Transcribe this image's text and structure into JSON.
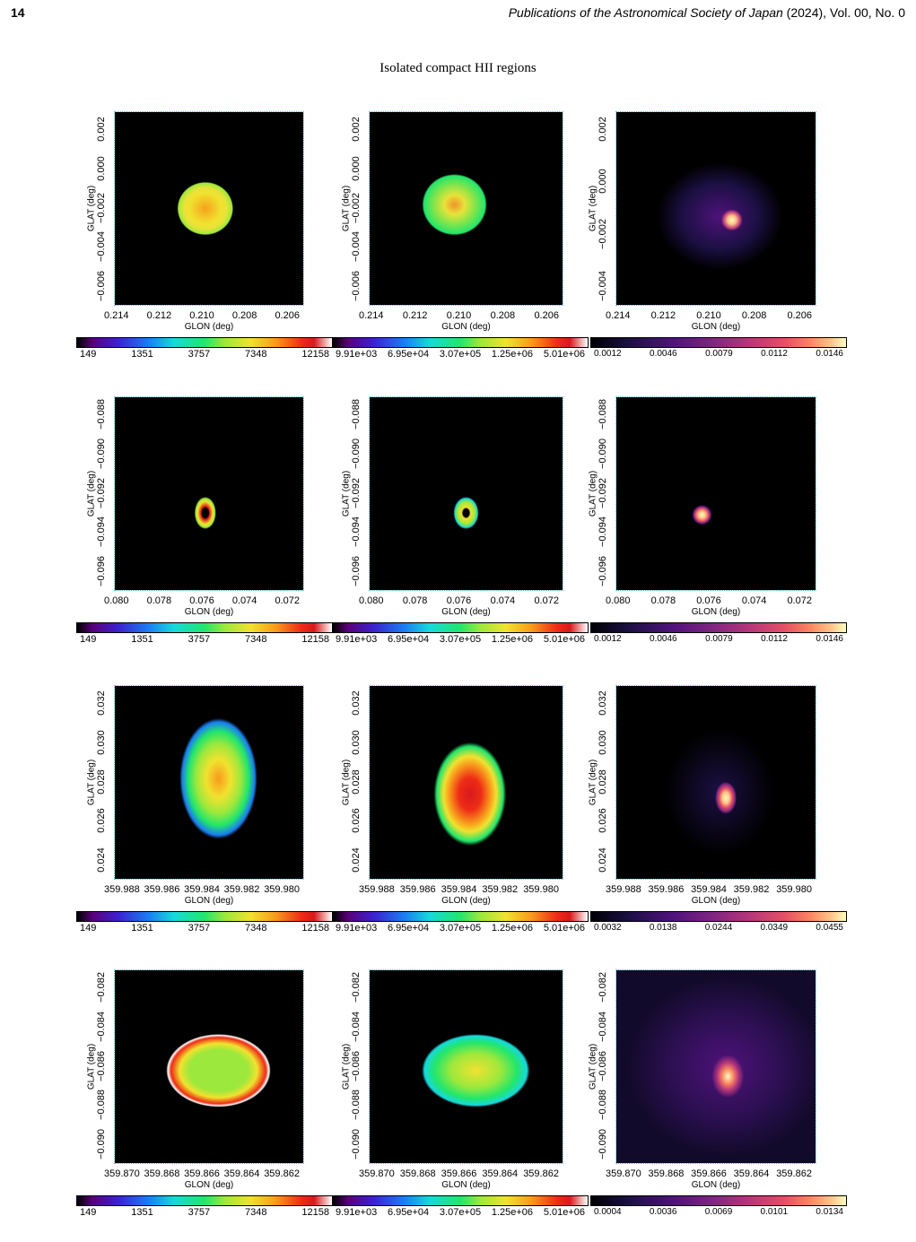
{
  "header": {
    "page_number": "14",
    "journal": "Publications of the Astronomical Society of Japan",
    "journal_meta": " (2024), Vol. 00, No. 0"
  },
  "figure_title": "Isolated compact HII regions",
  "colorbars": {
    "col1": [
      "149",
      "1351",
      "3757",
      "7348",
      "12158"
    ],
    "col2": [
      "9.91e+03",
      "6.95e+04",
      "3.07e+05",
      "1.25e+06",
      "5.01e+06"
    ],
    "row1_col3": [
      "0.0012",
      "0.0046",
      "0.0079",
      "0.0112",
      "0.0146"
    ],
    "row2_col3": [
      "0.0012",
      "0.0046",
      "0.0079",
      "0.0112",
      "0.0146"
    ],
    "row3_col3": [
      "0.0032",
      "0.0138",
      "0.0244",
      "0.0349",
      "0.0455"
    ],
    "row4_col3": [
      "0.0004",
      "0.0036",
      "0.0069",
      "0.0101",
      "0.0134"
    ]
  },
  "axes": {
    "xlabel": "GLON (deg)",
    "ylabel": "GLAT (deg)"
  },
  "rows": [
    {
      "xticks": [
        "0.214",
        "0.212",
        "0.210",
        "0.208",
        "0.206"
      ],
      "xticks_c3": [
        "0.214",
        "0.212",
        "0.210",
        "0.208",
        "0.206"
      ],
      "yticks": [
        "0.002",
        "0.000",
        "−0.002",
        "−0.004",
        "−0.006"
      ],
      "yticks_c3": [
        "0.002",
        "0.000",
        "−0.002",
        "−0.004"
      ]
    },
    {
      "xticks": [
        "0.080",
        "0.078",
        "0.076",
        "0.074",
        "0.072"
      ],
      "xticks_c3": [
        "0.080",
        "0.078",
        "0.076",
        "0.074",
        "0.072"
      ],
      "yticks": [
        "−0.088",
        "−0.090",
        "−0.092",
        "−0.094",
        "−0.096"
      ],
      "yticks_c3": [
        "−0.088",
        "−0.090",
        "−0.092",
        "−0.094",
        "−0.096"
      ]
    },
    {
      "xticks": [
        "359.988",
        "359.986",
        "359.984",
        "359.982",
        "359.980"
      ],
      "xticks_c3": [
        "359.988",
        "359.986",
        "359.984",
        "359.982",
        "359.980"
      ],
      "yticks": [
        "0.032",
        "0.030",
        "0.028",
        "0.026",
        "0.024"
      ],
      "yticks_c3": [
        "0.032",
        "0.030",
        "0.028",
        "0.026",
        "0.024"
      ]
    },
    {
      "xticks": [
        "359.870",
        "359.868",
        "359.866",
        "359.864",
        "359.862"
      ],
      "xticks_c3": [
        "359.870",
        "359.868",
        "359.866",
        "359.864",
        "359.862"
      ],
      "yticks": [
        "−0.082",
        "−0.084",
        "−0.086",
        "−0.088",
        "−0.090"
      ],
      "yticks_c3": [
        "−0.082",
        "−0.084",
        "−0.086",
        "−0.088",
        "−0.090"
      ]
    }
  ]
}
